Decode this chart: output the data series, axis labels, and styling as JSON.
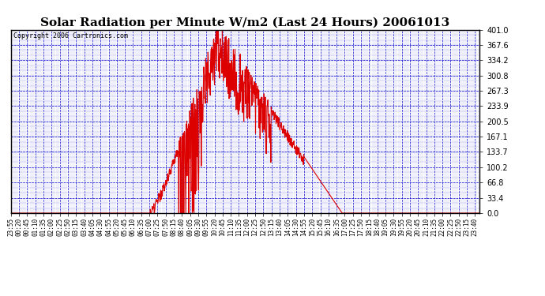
{
  "title": "Solar Radiation per Minute W/m2 (Last 24 Hours) 20061013",
  "copyright": "Copyright 2006 Cartronics.com",
  "line_color": "#dd0000",
  "background_color": "#ffffff",
  "grid_major_color": "#0000cc",
  "grid_minor_color": "#0000cc",
  "border_color": "#000000",
  "ylim": [
    0.0,
    401.0
  ],
  "yticks": [
    0.0,
    33.4,
    66.8,
    100.2,
    133.7,
    167.1,
    200.5,
    233.9,
    267.3,
    300.8,
    334.2,
    367.6,
    401.0
  ],
  "title_fontsize": 11,
  "copyright_fontsize": 6,
  "tick_fontsize": 5.5,
  "ytick_fontsize": 7,
  "line_width": 0.8
}
